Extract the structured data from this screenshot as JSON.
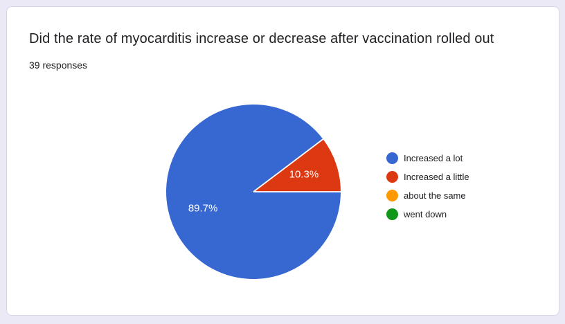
{
  "theme": {
    "page_background": "#ece9f7",
    "card_background": "#ffffff",
    "card_border": "#d9d4e8",
    "text_primary": "#202124",
    "slice_label_color": "#ffffff",
    "slice_divider_color": "#ffffff"
  },
  "question": {
    "title": "Did the rate of myocarditis increase or decrease after vaccination rolled out",
    "responses_label": "39 responses"
  },
  "chart_data": {
    "type": "pie",
    "title": "Did the rate of myocarditis increase or decrease after vaccination rolled out",
    "subtitle": "39 responses",
    "labels": [
      "Increased a lot",
      "Increased a little",
      "about the same",
      "went down"
    ],
    "values_percent": [
      89.7,
      10.3,
      0,
      0
    ],
    "slice_labels": [
      "89.7%",
      "10.3%",
      "",
      ""
    ],
    "colors": [
      "#3767D1",
      "#DC3912",
      "#FF9900",
      "#109618"
    ],
    "legend_position": "right",
    "start_angle": "east",
    "direction": "clockwise",
    "radius_px": 126
  }
}
